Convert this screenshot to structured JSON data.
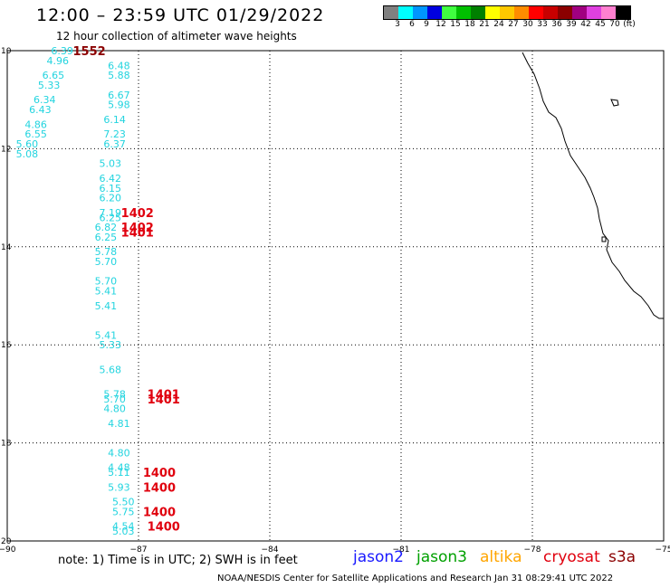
{
  "title": "12:00 – 23:59 UTC 01/29/2022",
  "subtitle": "12 hour collection of altimeter wave heights",
  "colorbar": {
    "colors": [
      "#808080",
      "#00ffff",
      "#0096ff",
      "#0000e0",
      "#40ff40",
      "#00c000",
      "#008000",
      "#ffff00",
      "#ffc800",
      "#ff8c00",
      "#ff0000",
      "#c80000",
      "#8b0000",
      "#a00080",
      "#e040e0",
      "#ff80d0",
      "#000000"
    ],
    "labels": [
      "3",
      "6",
      "9",
      "12",
      "15",
      "18",
      "21",
      "24",
      "27",
      "30",
      "33",
      "36",
      "39",
      "42",
      "45",
      "70",
      "(ft)"
    ]
  },
  "axes": {
    "lat_labels": [
      "10",
      "12",
      "14",
      "16",
      "18",
      "20"
    ],
    "lon_labels": [
      "−90",
      "−87",
      "−84",
      "−81",
      "−78",
      "−75"
    ]
  },
  "chart_data": {
    "type": "scatter",
    "xlim": [
      -90,
      -75
    ],
    "ylim": [
      20,
      10
    ],
    "swh": [
      {
        "v": "6.39",
        "lon": -89.0,
        "lat": 10.0
      },
      {
        "v": "4.96",
        "lon": -89.1,
        "lat": 10.2
      },
      {
        "v": "6.65",
        "lon": -89.2,
        "lat": 10.5
      },
      {
        "v": "6.48",
        "lon": -87.7,
        "lat": 10.3
      },
      {
        "v": "5.88",
        "lon": -87.7,
        "lat": 10.5
      },
      {
        "v": "5.33",
        "lon": -89.3,
        "lat": 10.7
      },
      {
        "v": "6.34",
        "lon": -89.4,
        "lat": 11.0
      },
      {
        "v": "6.67",
        "lon": -87.7,
        "lat": 10.9
      },
      {
        "v": "5.98",
        "lon": -87.7,
        "lat": 11.1
      },
      {
        "v": "6.43",
        "lon": -89.5,
        "lat": 11.2
      },
      {
        "v": "4.86",
        "lon": -89.6,
        "lat": 11.5
      },
      {
        "v": "6.14",
        "lon": -87.8,
        "lat": 11.4
      },
      {
        "v": "6.55",
        "lon": -89.6,
        "lat": 11.7
      },
      {
        "v": "7.23",
        "lon": -87.8,
        "lat": 11.7
      },
      {
        "v": "6.37",
        "lon": -87.8,
        "lat": 11.9
      },
      {
        "v": "5.60",
        "lon": -89.8,
        "lat": 11.9
      },
      {
        "v": "5.08",
        "lon": -89.8,
        "lat": 12.1
      },
      {
        "v": "5.03",
        "lon": -87.9,
        "lat": 12.3
      },
      {
        "v": "6.42",
        "lon": -87.9,
        "lat": 12.6
      },
      {
        "v": "6.15",
        "lon": -87.9,
        "lat": 12.8
      },
      {
        "v": "6.20",
        "lon": -87.9,
        "lat": 13.0
      },
      {
        "v": "7.19",
        "lon": -87.9,
        "lat": 13.3
      },
      {
        "v": "6.25",
        "lon": -87.9,
        "lat": 13.4
      },
      {
        "v": "6.82",
        "lon": -88.0,
        "lat": 13.6
      },
      {
        "v": "6.25",
        "lon": -88.0,
        "lat": 13.8
      },
      {
        "v": "5.78",
        "lon": -88.0,
        "lat": 14.1
      },
      {
        "v": "5.70",
        "lon": -88.0,
        "lat": 14.3
      },
      {
        "v": "5.70",
        "lon": -88.0,
        "lat": 14.7
      },
      {
        "v": "5.41",
        "lon": -88.0,
        "lat": 14.9
      },
      {
        "v": "5.41",
        "lon": -88.0,
        "lat": 15.2
      },
      {
        "v": "5.41",
        "lon": -88.0,
        "lat": 15.8
      },
      {
        "v": "5.33",
        "lon": -87.9,
        "lat": 16.0
      },
      {
        "v": "5.68",
        "lon": -87.9,
        "lat": 16.5
      },
      {
        "v": "5.78",
        "lon": -87.8,
        "lat": 17.0
      },
      {
        "v": "5.70",
        "lon": -87.8,
        "lat": 17.1
      },
      {
        "v": "4.80",
        "lon": -87.8,
        "lat": 17.3
      },
      {
        "v": "4.81",
        "lon": -87.7,
        "lat": 17.6
      },
      {
        "v": "4.80",
        "lon": -87.7,
        "lat": 18.2
      },
      {
        "v": "4.48",
        "lon": -87.7,
        "lat": 18.5
      },
      {
        "v": "5.11",
        "lon": -87.7,
        "lat": 18.6
      },
      {
        "v": "5.93",
        "lon": -87.7,
        "lat": 18.9
      },
      {
        "v": "5.50",
        "lon": -87.6,
        "lat": 19.2
      },
      {
        "v": "5.75",
        "lon": -87.6,
        "lat": 19.4
      },
      {
        "v": "4.54",
        "lon": -87.6,
        "lat": 19.7
      },
      {
        "v": "5.03",
        "lon": -87.6,
        "lat": 19.8
      }
    ],
    "times": [
      {
        "v": "1552",
        "lon": -88.5,
        "lat": 10.0,
        "color": "#8b0000"
      },
      {
        "v": "1402",
        "lon": -87.4,
        "lat": 13.3,
        "color": "#e0000e"
      },
      {
        "v": "1402",
        "lon": -87.4,
        "lat": 13.6,
        "color": "#e0000e"
      },
      {
        "v": "1401",
        "lon": -87.4,
        "lat": 13.7,
        "color": "#e0000e"
      },
      {
        "v": "1401",
        "lon": -86.8,
        "lat": 17.0,
        "color": "#e0000e"
      },
      {
        "v": "1401",
        "lon": -86.8,
        "lat": 17.1,
        "color": "#e0000e"
      },
      {
        "v": "1400",
        "lon": -86.9,
        "lat": 18.6,
        "color": "#e0000e"
      },
      {
        "v": "1400",
        "lon": -86.9,
        "lat": 18.9,
        "color": "#e0000e"
      },
      {
        "v": "1400",
        "lon": -86.9,
        "lat": 19.4,
        "color": "#e0000e"
      },
      {
        "v": "1400",
        "lon": -86.8,
        "lat": 19.7,
        "color": "#e0000e"
      }
    ]
  },
  "note": "note: 1) Time is in UTC; 2) SWH is in feet",
  "legend": [
    {
      "name": "jason2",
      "color": "#1a1aff"
    },
    {
      "name": "jason3",
      "color": "#00a000"
    },
    {
      "name": "altika",
      "color": "#ffa500"
    },
    {
      "name": "cryosat",
      "color": "#e0000e"
    },
    {
      "name": "s3a",
      "color": "#8b0000"
    }
  ],
  "footer": "NOAA/NESDIS Center for Satellite Applications and Research   Jan 31 08:29:41 UTC 2022"
}
